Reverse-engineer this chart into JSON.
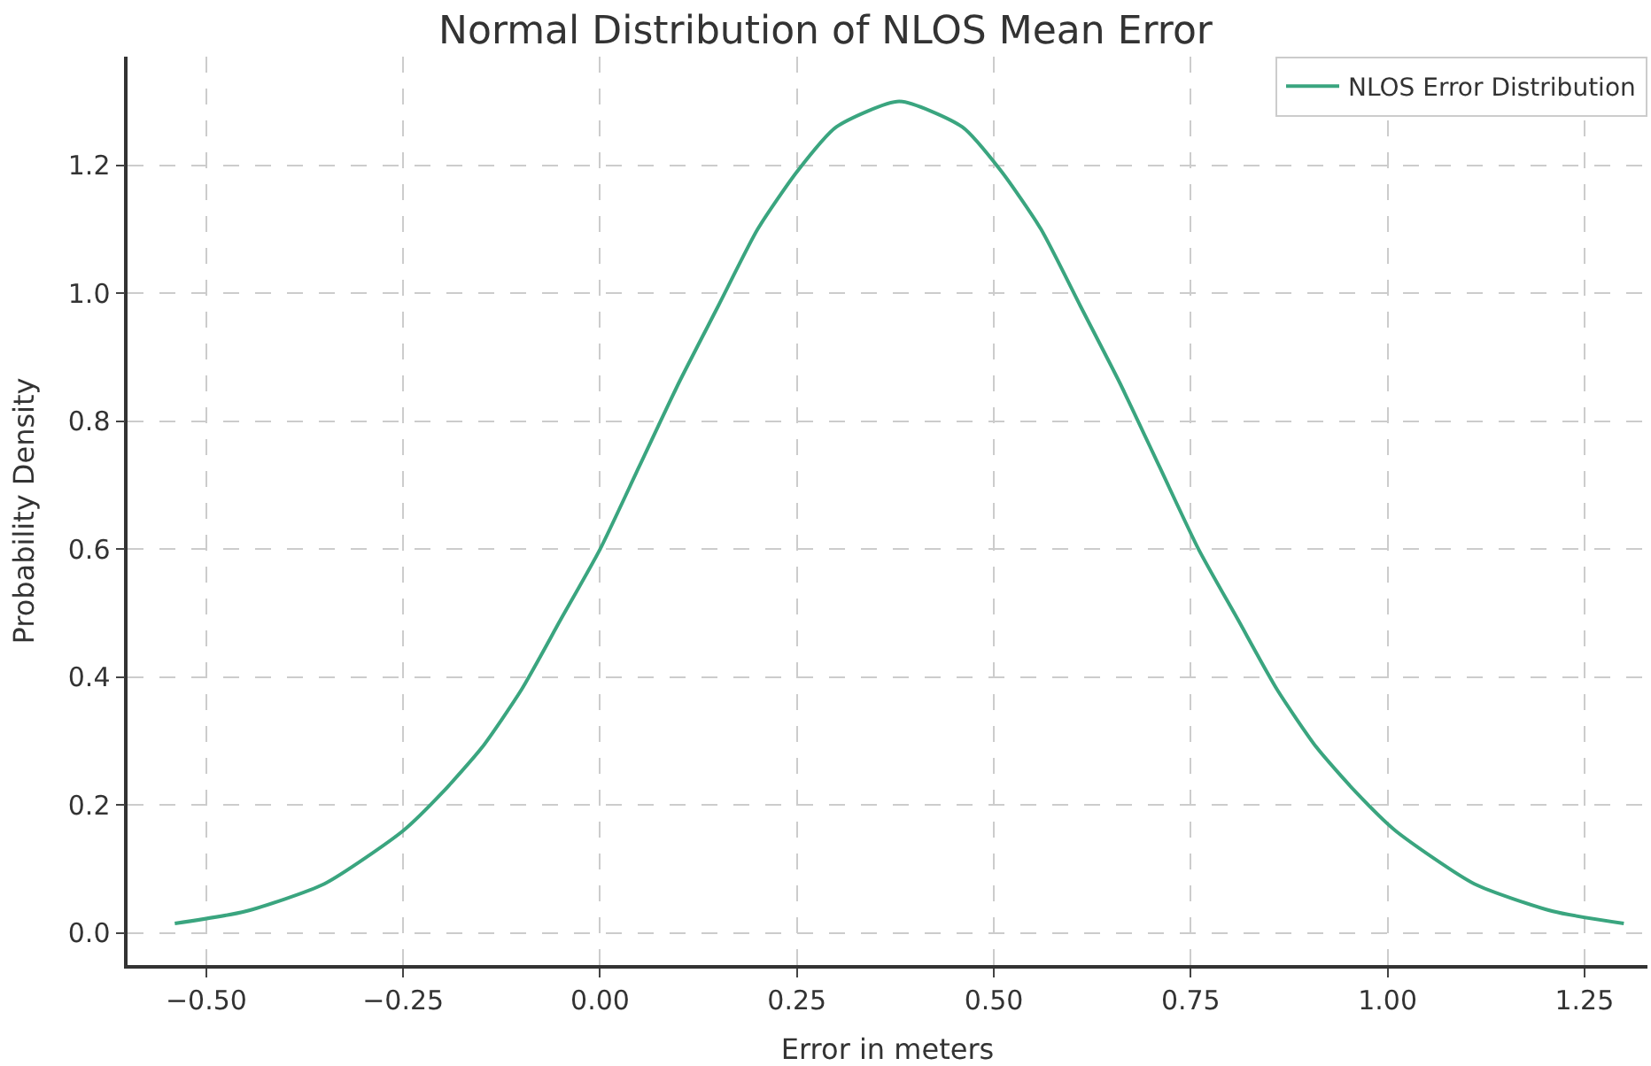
{
  "chart_data": {
    "type": "line",
    "title": "Normal Distribution of NLOS Mean Error",
    "xlabel": "Error in meters",
    "ylabel": "Probability Density",
    "x": [
      -0.54,
      -0.45,
      -0.35,
      -0.25,
      -0.2,
      -0.15,
      -0.1,
      -0.05,
      0.0,
      0.05,
      0.1,
      0.15,
      0.2,
      0.25,
      0.3,
      0.38,
      0.46,
      0.51,
      0.56,
      0.61,
      0.66,
      0.71,
      0.76,
      0.81,
      0.86,
      0.91,
      0.96,
      1.01,
      1.11,
      1.21,
      1.3
    ],
    "series": [
      {
        "name": "NLOS Error Distribution",
        "color": "#3aa57f",
        "values": [
          0.015,
          0.034,
          0.077,
          0.16,
          0.22,
          0.29,
          0.38,
          0.49,
          0.6,
          0.73,
          0.86,
          0.98,
          1.1,
          1.19,
          1.26,
          1.3,
          1.26,
          1.19,
          1.1,
          0.98,
          0.86,
          0.73,
          0.6,
          0.49,
          0.38,
          0.29,
          0.22,
          0.16,
          0.077,
          0.034,
          0.015
        ]
      }
    ],
    "xlim": [
      -0.6,
      1.33
    ],
    "ylim": [
      -0.05,
      1.37
    ],
    "xticks": [
      {
        "value": -0.5,
        "label": "−0.50"
      },
      {
        "value": -0.25,
        "label": "−0.25"
      },
      {
        "value": 0,
        "label": "0.00"
      },
      {
        "value": 0.25,
        "label": "0.25"
      },
      {
        "value": 0.5,
        "label": "0.50"
      },
      {
        "value": 0.75,
        "label": "0.75"
      },
      {
        "value": 1.0,
        "label": "1.00"
      },
      {
        "value": 1.25,
        "label": "1.25"
      }
    ],
    "yticks": [
      {
        "value": 0,
        "label": "0.0"
      },
      {
        "value": 0.2,
        "label": "0.2"
      },
      {
        "value": 0.4,
        "label": "0.4"
      },
      {
        "value": 0.6,
        "label": "0.6"
      },
      {
        "value": 0.8,
        "label": "0.8"
      },
      {
        "value": 1.0,
        "label": "1.0"
      },
      {
        "value": 1.2,
        "label": "1.2"
      }
    ],
    "grid": true,
    "legend": "top right",
    "marker": "none",
    "line_style": "solid"
  }
}
